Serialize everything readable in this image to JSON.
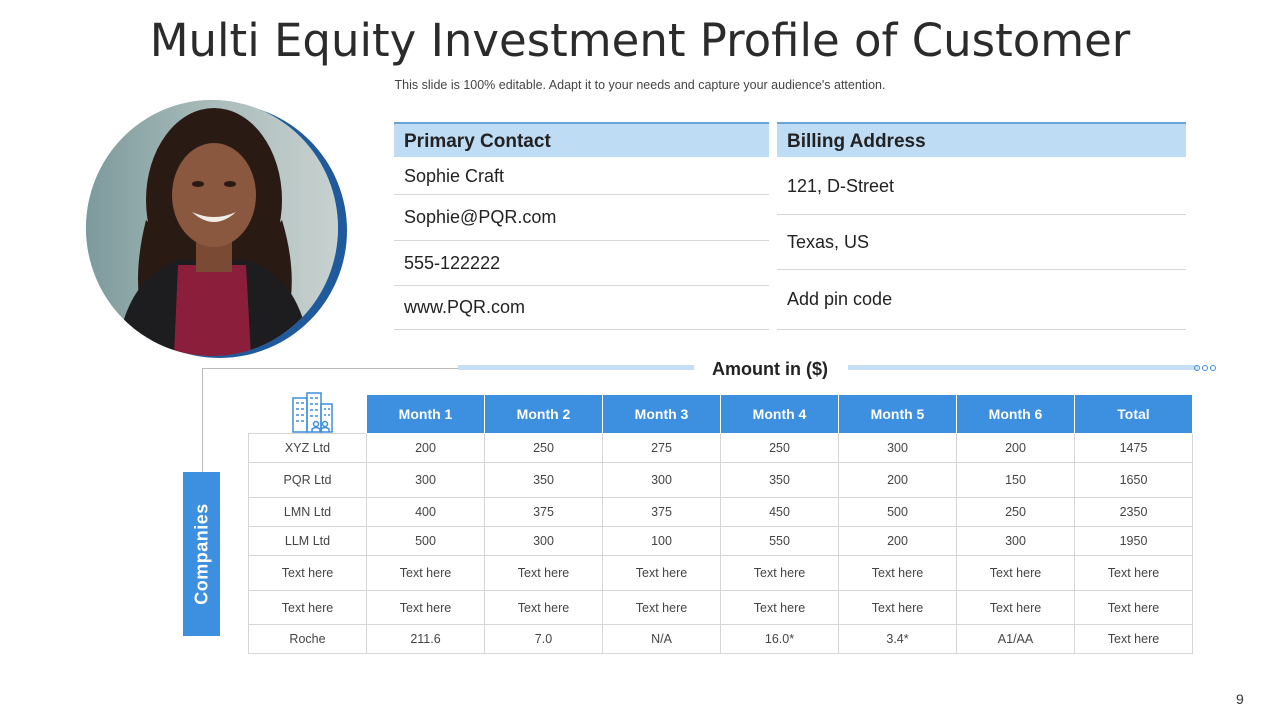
{
  "slide": {
    "title": "Multi Equity Investment Profile of Customer",
    "subtitle": "This slide is 100% editable. Adapt it to your needs and capture your audience's attention.",
    "page_number": "9"
  },
  "primary_contact": {
    "heading": "Primary Contact",
    "name": "Sophie Craft",
    "email": "Sophie@PQR.com",
    "phone": "555-122222",
    "website": "www.PQR.com"
  },
  "billing_address": {
    "heading": "Billing Address",
    "street": "121, D-Street",
    "state": "Texas, US",
    "pin": "Add pin code"
  },
  "amount_label": "Amount in ($)",
  "companies_label": "Companies",
  "table": {
    "headers": [
      "Month 1",
      "Month 2",
      "Month 3",
      "Month 4",
      "Month 5",
      "Month 6",
      "Total"
    ],
    "rows": [
      [
        "XYZ Ltd",
        "200",
        "250",
        "275",
        "250",
        "300",
        "200",
        "1475"
      ],
      [
        "PQR Ltd",
        "300",
        "350",
        "300",
        "350",
        "200",
        "150",
        "1650"
      ],
      [
        "LMN Ltd",
        "400",
        "375",
        "375",
        "450",
        "500",
        "250",
        "2350"
      ],
      [
        "LLM Ltd",
        "500",
        "300",
        "100",
        "550",
        "200",
        "300",
        "1950"
      ],
      [
        "Text here",
        "Text here",
        "Text here",
        "Text here",
        "Text here",
        "Text here",
        "Text here",
        "Text here"
      ],
      [
        "Text here",
        "Text here",
        "Text here",
        "Text here",
        "Text here",
        "Text here",
        "Text here",
        "Text here"
      ],
      [
        "Roche",
        "211.6",
        "7.0",
        "N/A",
        "16.0*",
        "3.4*",
        "A1/AA",
        "Text here"
      ]
    ]
  },
  "colors": {
    "header_blue": "#3d8fe0",
    "light_blue": "#bfdcf5",
    "ring_blue": "#1f5a9c"
  },
  "icons": [
    "building-icon",
    "ellipsis-dots-icon"
  ]
}
